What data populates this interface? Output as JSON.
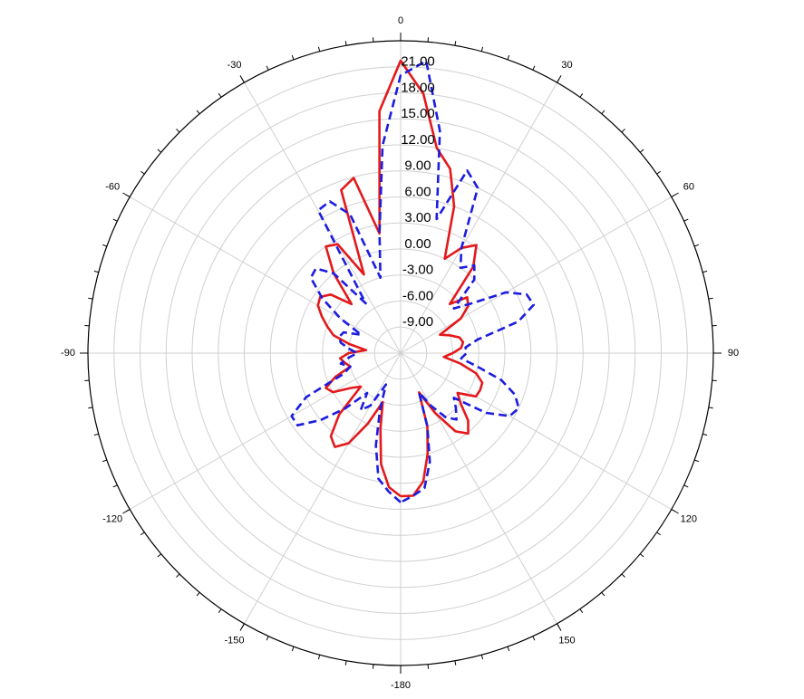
{
  "chart_data": {
    "type": "polar",
    "x": [
      -180,
      -175,
      -170,
      -165,
      -160,
      -155,
      -150,
      -145,
      -140,
      -135,
      -130,
      -125,
      -120,
      -115,
      -110,
      -105,
      -100,
      -95,
      -90,
      -85,
      -80,
      -75,
      -70,
      -65,
      -60,
      -55,
      -50,
      -45,
      -40,
      -35,
      -30,
      -25,
      -20,
      -15,
      -10,
      -5,
      0,
      5,
      10,
      15,
      20,
      25,
      30,
      35,
      40,
      45,
      50,
      55,
      60,
      65,
      70,
      75,
      80,
      85,
      90,
      95,
      100,
      105,
      110,
      115,
      120,
      125,
      130,
      135,
      140,
      145,
      150,
      155,
      160,
      165,
      170,
      175,
      180
    ],
    "series": [
      {
        "color": "#e3191c",
        "line_style": "solid",
        "values": [
          4.5,
          3.5,
          1,
          -3,
          -6,
          -3,
          0,
          1.2,
          0.5,
          -2,
          -6,
          -5,
          -3,
          -2.5,
          -4,
          -6,
          -5.5,
          -5,
          -6,
          -8,
          -6,
          -4,
          -3,
          -2,
          -1,
          -0.7,
          -1.5,
          -4,
          0,
          3,
          2.5,
          -2,
          8,
          8.9,
          2,
          16,
          21.7,
          18,
          12,
          10,
          6,
          0,
          2,
          3.2,
          1,
          -4,
          -2,
          -2.5,
          -4,
          -7,
          -6,
          -5,
          -4.7,
          -5,
          -6,
          -7,
          -5,
          -3,
          -2,
          -1.9,
          -2,
          -4,
          -3,
          -1,
          0.1,
          -1,
          -4,
          -7,
          -3,
          0,
          3,
          4.5,
          4.5
        ]
      },
      {
        "color": "#1c1ce0",
        "line_style": "dashed",
        "values": [
          5.2,
          4,
          2.7,
          -1,
          -5,
          -8,
          -5,
          -4,
          -6,
          -3,
          0,
          2.5,
          2.5,
          0,
          -5,
          -6,
          -5,
          -6,
          -7,
          -6,
          -5,
          -4.7,
          -5,
          -7,
          -4,
          -1,
          1.5,
          1.8,
          0,
          -5,
          7,
          7.3,
          5,
          -3,
          2,
          12,
          20,
          21.8,
          14,
          4,
          10.4,
          9,
          2,
          0,
          1.2,
          0,
          -4,
          -2,
          2,
          4,
          4.3,
          2,
          -3,
          -4.5,
          -4.4,
          -5,
          -3,
          0,
          2,
          3,
          2.5,
          0,
          -4,
          -3,
          -2,
          -3,
          -5,
          -7,
          -3,
          1,
          3.8,
          4.5,
          5.2
        ]
      }
    ],
    "xticks": [
      0,
      30,
      60,
      90,
      120,
      150,
      -180,
      -150,
      -120,
      -90,
      -60,
      -30
    ],
    "ylim": [
      -12,
      24
    ],
    "yticks": [
      {
        "value": -9,
        "label": "-9.00"
      },
      {
        "value": -6,
        "label": "-6.00"
      },
      {
        "value": -3,
        "label": "-3.00"
      },
      {
        "value": 0,
        "label": "0.00"
      },
      {
        "value": 3,
        "label": "3.00"
      },
      {
        "value": 6,
        "label": "6.00"
      },
      {
        "value": 9,
        "label": "9.00"
      },
      {
        "value": 12,
        "label": "12.00"
      },
      {
        "value": 15,
        "label": "15.00"
      },
      {
        "value": 18,
        "label": "18.00"
      },
      {
        "value": 21,
        "label": "21.00"
      }
    ],
    "grid": true
  }
}
